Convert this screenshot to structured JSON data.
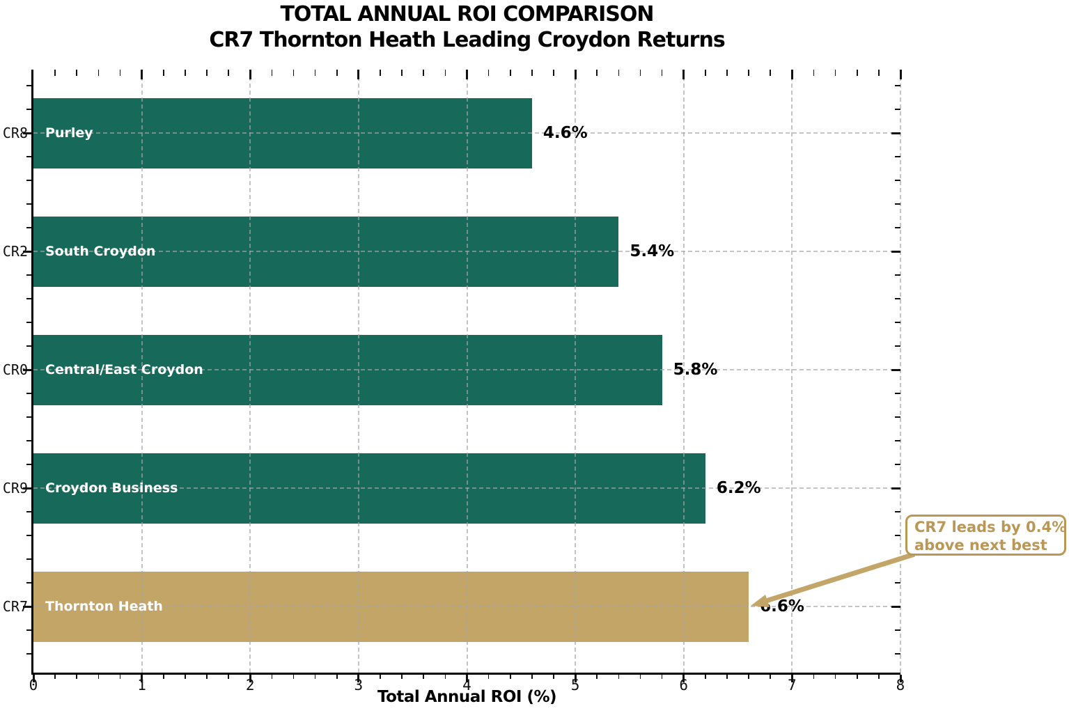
{
  "title": {
    "line1": "TOTAL ANNUAL ROI COMPARISON",
    "line2": "CR7 Thornton Heath Leading Croydon Returns"
  },
  "chart_data": {
    "type": "bar",
    "orientation": "horizontal",
    "title": "TOTAL ANNUAL ROI COMPARISON — CR7 Thornton Heath Leading Croydon Returns",
    "xlabel": "Total Annual ROI (%)",
    "ylabel": "",
    "xlim": [
      0,
      8
    ],
    "x_major_ticks": [
      0,
      1,
      2,
      3,
      4,
      5,
      6,
      7,
      8
    ],
    "x_minor_step": 0.2,
    "grid": true,
    "grid_style": "dashed",
    "categories": [
      "CR8",
      "CR2",
      "CR0",
      "CR9",
      "CR7"
    ],
    "bar_labels": [
      "Purley",
      "South Croydon",
      "Central/East Croydon",
      "Croydon Business",
      "Thornton Heath"
    ],
    "values": [
      4.6,
      5.4,
      5.8,
      6.2,
      6.6
    ],
    "value_labels": [
      "4.6%",
      "5.4%",
      "5.8%",
      "6.2%",
      "6.6%"
    ],
    "highlight_index": 4,
    "annotation": {
      "line1": "CR7 leads by 0.4%",
      "line2": "above next best",
      "points_to_value": 6.6,
      "points_to_category": "CR7"
    },
    "colors": {
      "bar_default": "#176a5a",
      "bar_highlight": "#c3a567",
      "annotation_accent": "#bb9755",
      "grid": "#a5a5a5",
      "axis": "#000000",
      "bar_label_text": "#ffffff",
      "value_label_text": "#000000"
    }
  }
}
